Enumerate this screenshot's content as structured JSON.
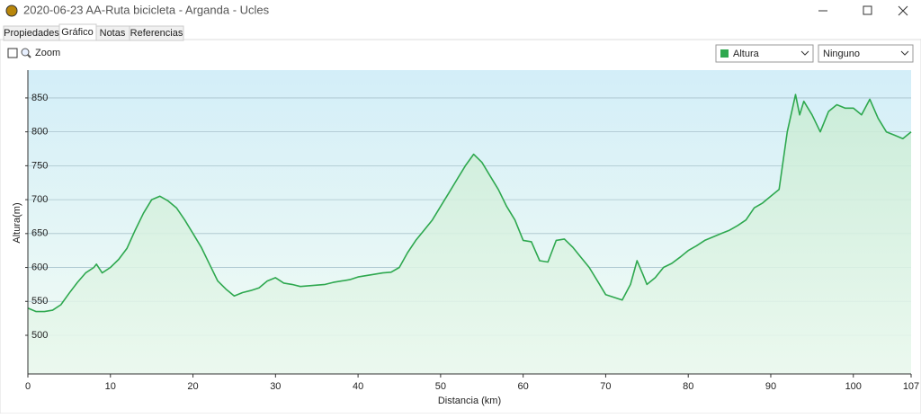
{
  "window": {
    "title": "2020-06-23 AA-Ruta bicicleta - Arganda - Ucles"
  },
  "tabs": [
    "Propiedades",
    "Gráfico",
    "Notas",
    "Referencias"
  ],
  "controls": {
    "zoom": "Zoom",
    "series_select": "Altura",
    "second_select": "Ninguno"
  },
  "chart_data": {
    "type": "line",
    "xlabel": "Distancia  (km)",
    "ylabel": "Altura(m)",
    "x": [
      0,
      1,
      2,
      3,
      4,
      5,
      6,
      7,
      8,
      8.3,
      9,
      10,
      11,
      12,
      13,
      14,
      15,
      16,
      17,
      18,
      19,
      20,
      21,
      22,
      23,
      24,
      25,
      26,
      27,
      28,
      29,
      30,
      31,
      32,
      33,
      34,
      35,
      36,
      37,
      38,
      39,
      40,
      41,
      42,
      43,
      44,
      45,
      46,
      47,
      48,
      49,
      50,
      51,
      52,
      53,
      54,
      55,
      56,
      57,
      58,
      59,
      60,
      61,
      62,
      63,
      64,
      65,
      66,
      67,
      68,
      69,
      70,
      71,
      72,
      73,
      73.8,
      74.5,
      75,
      76,
      77,
      78,
      79,
      80,
      81,
      82,
      83,
      84,
      85,
      86,
      87,
      88,
      89,
      90,
      91,
      92,
      93,
      93.5,
      94,
      95,
      96,
      97,
      98,
      99,
      100,
      101,
      102,
      103,
      104,
      105,
      106,
      107
    ],
    "values": [
      540,
      535,
      535,
      537,
      545,
      562,
      578,
      592,
      600,
      605,
      592,
      600,
      612,
      628,
      655,
      680,
      700,
      705,
      698,
      688,
      670,
      650,
      630,
      605,
      580,
      568,
      558,
      563,
      566,
      570,
      580,
      585,
      577,
      575,
      572,
      573,
      574,
      575,
      578,
      580,
      582,
      586,
      588,
      590,
      592,
      593,
      600,
      622,
      640,
      655,
      670,
      690,
      710,
      730,
      750,
      767,
      755,
      735,
      715,
      690,
      670,
      640,
      638,
      610,
      608,
      640,
      642,
      630,
      615,
      600,
      580,
      560,
      556,
      552,
      575,
      610,
      590,
      575,
      585,
      600,
      606,
      615,
      625,
      632,
      640,
      645,
      650,
      655,
      662,
      670,
      688,
      695,
      705,
      715,
      800,
      855,
      825,
      845,
      825,
      800,
      830,
      840,
      835,
      835,
      825,
      848,
      820,
      800,
      795,
      790,
      800
    ],
    "color": "#2ea84f",
    "xlim": [
      0,
      107
    ],
    "xticks": [
      0,
      10,
      20,
      30,
      40,
      50,
      60,
      70,
      80,
      90,
      100,
      107
    ],
    "ylim": [
      443,
      891
    ],
    "yticks": [
      500,
      550,
      600,
      650,
      700,
      750,
      800,
      850
    ],
    "grid": true
  }
}
